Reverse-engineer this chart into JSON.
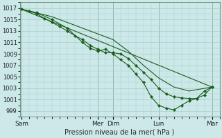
{
  "background_color": "#cce8e8",
  "grid_color": "#aacece",
  "line_color": "#1a5c1a",
  "xlabel": "Pression niveau de la mer( hPa )",
  "ylim": [
    998.0,
    1018.0
  ],
  "yticks": [
    999,
    1001,
    1003,
    1005,
    1007,
    1009,
    1011,
    1013,
    1015,
    1017
  ],
  "ytick_fontsize": 6,
  "xlabel_fontsize": 7,
  "xtick_fontsize": 6.5,
  "day_labels": [
    "Sam",
    "Mer",
    "Dim",
    "Lun",
    "Mar"
  ],
  "day_positions": [
    0,
    5.0,
    6.0,
    9.0,
    12.5
  ],
  "xlim": [
    -0.1,
    13.0
  ],
  "series": [
    {
      "x": [
        0,
        0.5,
        1.0,
        1.5,
        2.0,
        2.5,
        3.0,
        3.5,
        4.0,
        4.5,
        5.0,
        5.5,
        6.0,
        6.5,
        7.0,
        7.5,
        8.0,
        8.5,
        9.0,
        9.5,
        10.0,
        10.5,
        11.0,
        11.5,
        12.0,
        12.5
      ],
      "y": [
        1016.8,
        1016.5,
        1016.0,
        1015.2,
        1014.5,
        1013.8,
        1013.0,
        1012.2,
        1011.5,
        1010.5,
        1009.8,
        1009.2,
        1009.2,
        1009.0,
        1008.2,
        1007.0,
        1005.8,
        1004.5,
        1003.0,
        1002.0,
        1001.5,
        1001.3,
        1001.2,
        1001.2,
        1002.5,
        1003.2
      ],
      "has_markers": true
    },
    {
      "x": [
        0,
        1.0,
        2.0,
        3.0,
        4.0,
        4.5,
        5.0,
        5.5,
        6.0,
        6.5,
        7.0,
        7.5,
        8.0,
        8.5,
        9.0,
        9.5,
        10.0,
        10.5,
        11.0,
        11.5,
        12.0,
        12.5
      ],
      "y": [
        1016.8,
        1016.2,
        1015.0,
        1013.5,
        1011.0,
        1010.0,
        1009.5,
        1009.8,
        1009.0,
        1008.0,
        1007.0,
        1005.5,
        1004.0,
        1001.5,
        1000.0,
        999.5,
        999.2,
        1000.0,
        1000.8,
        1001.2,
        1001.8,
        1003.2
      ],
      "has_markers": true
    },
    {
      "x": [
        0,
        2.0,
        4.0,
        5.0,
        6.0,
        7.0,
        8.0,
        9.0,
        10.0,
        11.0,
        12.5
      ],
      "y": [
        1016.8,
        1015.5,
        1013.5,
        1012.5,
        1011.5,
        1009.5,
        1007.0,
        1004.8,
        1003.2,
        1002.5,
        1003.2
      ],
      "has_markers": false
    },
    {
      "x": [
        0,
        12.5
      ],
      "y": [
        1016.8,
        1003.2
      ],
      "has_markers": false
    }
  ]
}
